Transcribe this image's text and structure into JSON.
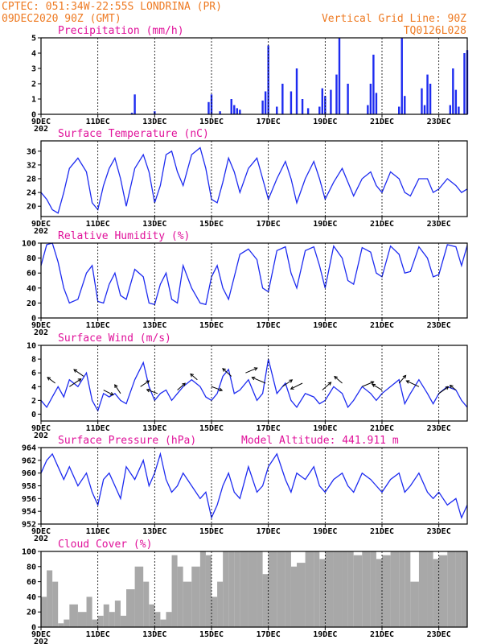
{
  "header": {
    "line1": "CPTEC:  051:34W-22:55S  LONDRINA (PR)",
    "line2": "09DEC2020 90Z (GMT)",
    "grid_note": "Vertical Grid Line: 90Z",
    "code": "TQ0126L028"
  },
  "x_axis": {
    "ticks": [
      "9DEC",
      "11DEC",
      "13DEC",
      "15DEC",
      "17DEC",
      "19DEC",
      "21DEC",
      "23DEC"
    ],
    "tick_days": [
      9,
      11,
      13,
      15,
      17,
      19,
      21,
      23
    ],
    "start_day": 9,
    "end_day": 24,
    "clipped_year_label": "202"
  },
  "colors": {
    "series": "#1d2bf0",
    "cloud": "#a8a8a8",
    "header": "#ee7a22",
    "title": "#e0119a"
  },
  "chart_data": [
    {
      "type": "bar",
      "title": "Precipitation (mm/h)",
      "ylim": [
        0,
        5
      ],
      "yticks": [
        0,
        1,
        2,
        3,
        4,
        5
      ],
      "x": [
        12.2,
        12.3,
        13.0,
        14.9,
        15.0,
        15.3,
        15.7,
        15.8,
        15.9,
        16.0,
        16.8,
        16.9,
        17.0,
        17.3,
        17.5,
        17.8,
        18.0,
        18.2,
        18.4,
        18.8,
        18.9,
        19.0,
        19.2,
        19.4,
        19.5,
        19.8,
        20.5,
        20.6,
        20.7,
        20.8,
        21.6,
        21.7,
        21.8,
        22.4,
        22.5,
        22.6,
        22.7,
        23.4,
        23.5,
        23.6,
        23.7,
        23.9,
        24.0
      ],
      "values": [
        0.1,
        1.3,
        0.2,
        0.8,
        1.3,
        0.2,
        1.0,
        0.6,
        0.4,
        0.3,
        0.9,
        1.5,
        4.5,
        0.5,
        2.0,
        1.5,
        3.0,
        1.0,
        0.4,
        0.5,
        1.7,
        1.2,
        1.6,
        2.6,
        5.0,
        2.0,
        0.6,
        2.0,
        3.9,
        1.4,
        0.5,
        5.0,
        1.2,
        1.7,
        0.6,
        2.6,
        2.0,
        0.6,
        3.0,
        1.6,
        0.5,
        4.0,
        4.2
      ]
    },
    {
      "type": "line",
      "title": "Surface Temperature (nC)",
      "ylim": [
        17,
        39
      ],
      "yticks": [
        20,
        24,
        28,
        32,
        36
      ],
      "x": [
        9.0,
        9.2,
        9.4,
        9.6,
        9.8,
        10.0,
        10.3,
        10.6,
        10.8,
        11.0,
        11.2,
        11.4,
        11.6,
        11.8,
        12.0,
        12.3,
        12.6,
        12.8,
        13.0,
        13.2,
        13.4,
        13.6,
        13.8,
        14.0,
        14.3,
        14.6,
        14.8,
        15.0,
        15.2,
        15.4,
        15.6,
        15.8,
        16.0,
        16.3,
        16.6,
        16.8,
        17.0,
        17.3,
        17.6,
        17.8,
        18.0,
        18.3,
        18.6,
        18.8,
        19.0,
        19.3,
        19.6,
        19.8,
        20.0,
        20.3,
        20.6,
        20.8,
        21.0,
        21.3,
        21.6,
        21.8,
        22.0,
        22.3,
        22.6,
        22.8,
        23.0,
        23.3,
        23.6,
        23.8,
        24.0
      ],
      "values": [
        24,
        22,
        19,
        18,
        24,
        31,
        34,
        30,
        21,
        19,
        26,
        31,
        34,
        28,
        20,
        31,
        35,
        30,
        21,
        26,
        35,
        36,
        30,
        26,
        35,
        37,
        31,
        22,
        21,
        27,
        34,
        30,
        24,
        31,
        34,
        28,
        22,
        28,
        33,
        28,
        21,
        28,
        33,
        28,
        22,
        27,
        31,
        27,
        23,
        28,
        30,
        26,
        24,
        30,
        28,
        24,
        23,
        28,
        28,
        24,
        25,
        28,
        26,
        24,
        25
      ]
    },
    {
      "type": "line",
      "title": "Relative Humidity (%)",
      "ylim": [
        0,
        100
      ],
      "yticks": [
        0,
        20,
        40,
        60,
        80,
        100
      ],
      "x": [
        9.0,
        9.2,
        9.4,
        9.6,
        9.8,
        10.0,
        10.3,
        10.6,
        10.8,
        11.0,
        11.2,
        11.4,
        11.6,
        11.8,
        12.0,
        12.3,
        12.6,
        12.8,
        13.0,
        13.2,
        13.4,
        13.6,
        13.8,
        14.0,
        14.3,
        14.6,
        14.8,
        15.0,
        15.2,
        15.4,
        15.6,
        15.8,
        16.0,
        16.3,
        16.6,
        16.8,
        17.0,
        17.3,
        17.6,
        17.8,
        18.0,
        18.3,
        18.6,
        18.8,
        19.0,
        19.3,
        19.6,
        19.8,
        20.0,
        20.3,
        20.6,
        20.8,
        21.0,
        21.3,
        21.6,
        21.8,
        22.0,
        22.3,
        22.6,
        22.8,
        23.0,
        23.3,
        23.6,
        23.8,
        24.0
      ],
      "values": [
        70,
        98,
        100,
        75,
        40,
        20,
        25,
        60,
        70,
        22,
        20,
        45,
        60,
        30,
        25,
        65,
        55,
        20,
        18,
        45,
        60,
        25,
        20,
        70,
        40,
        20,
        18,
        55,
        70,
        40,
        25,
        55,
        85,
        92,
        78,
        40,
        35,
        90,
        95,
        60,
        40,
        90,
        95,
        70,
        40,
        96,
        80,
        50,
        45,
        94,
        88,
        60,
        55,
        96,
        85,
        60,
        62,
        95,
        80,
        55,
        58,
        98,
        95,
        70,
        97
      ]
    },
    {
      "type": "line",
      "title": "Surface Wind (m/s)",
      "ylim": [
        -1,
        10
      ],
      "yticks": [
        0,
        2,
        4,
        6,
        8,
        10
      ],
      "x": [
        9.0,
        9.2,
        9.4,
        9.6,
        9.8,
        10.0,
        10.3,
        10.6,
        10.8,
        11.0,
        11.2,
        11.4,
        11.6,
        11.8,
        12.0,
        12.3,
        12.6,
        12.8,
        13.0,
        13.2,
        13.4,
        13.6,
        13.8,
        14.0,
        14.3,
        14.6,
        14.8,
        15.0,
        15.2,
        15.4,
        15.6,
        15.8,
        16.0,
        16.3,
        16.6,
        16.8,
        17.0,
        17.3,
        17.6,
        17.8,
        18.0,
        18.3,
        18.6,
        18.8,
        19.0,
        19.3,
        19.6,
        19.8,
        20.0,
        20.3,
        20.6,
        20.8,
        21.0,
        21.3,
        21.6,
        21.8,
        22.0,
        22.3,
        22.6,
        22.8,
        23.0,
        23.3,
        23.6,
        23.8,
        24.0
      ],
      "values": [
        2,
        1,
        2.5,
        4,
        2.5,
        5,
        4,
        6,
        2,
        0.5,
        3,
        2.5,
        3,
        2,
        1.5,
        5,
        7.5,
        4,
        2,
        3,
        3.5,
        2,
        3,
        4,
        5,
        4,
        2.5,
        2,
        3,
        5.5,
        6.5,
        3,
        3.5,
        5,
        2,
        3,
        8,
        3,
        4.5,
        2,
        1,
        3,
        2.5,
        1.5,
        2,
        4,
        3,
        1,
        2,
        4,
        3,
        2,
        3,
        4,
        5,
        1.5,
        3,
        5,
        3,
        1.5,
        3,
        4,
        3.5,
        2,
        1
      ]
    },
    {
      "type": "line",
      "title": "Surface Pressure (hPa)",
      "annotation": "Model Altitude: 441.911 m",
      "ylim": [
        952,
        964
      ],
      "yticks": [
        952,
        954,
        956,
        958,
        960,
        962,
        964
      ],
      "x": [
        9.0,
        9.2,
        9.4,
        9.6,
        9.8,
        10.0,
        10.3,
        10.6,
        10.8,
        11.0,
        11.2,
        11.4,
        11.6,
        11.8,
        12.0,
        12.3,
        12.6,
        12.8,
        13.0,
        13.2,
        13.4,
        13.6,
        13.8,
        14.0,
        14.3,
        14.6,
        14.8,
        15.0,
        15.2,
        15.4,
        15.6,
        15.8,
        16.0,
        16.3,
        16.6,
        16.8,
        17.0,
        17.3,
        17.6,
        17.8,
        18.0,
        18.3,
        18.6,
        18.8,
        19.0,
        19.3,
        19.6,
        19.8,
        20.0,
        20.3,
        20.6,
        20.8,
        21.0,
        21.3,
        21.6,
        21.8,
        22.0,
        22.3,
        22.6,
        22.8,
        23.0,
        23.3,
        23.6,
        23.8,
        24.0
      ],
      "values": [
        960,
        962,
        963,
        961,
        959,
        961,
        958,
        960,
        957,
        955,
        959,
        960,
        958,
        956,
        961,
        959,
        962,
        958,
        960,
        963,
        959,
        957,
        958,
        960,
        958,
        956,
        957,
        953,
        955,
        958,
        960,
        957,
        956,
        961,
        957,
        958,
        961,
        963,
        959,
        957,
        960,
        959,
        961,
        958,
        957,
        959,
        960,
        958,
        957,
        960,
        959,
        958,
        957,
        959,
        960,
        957,
        958,
        960,
        957,
        956,
        957,
        955,
        956,
        953,
        955
      ]
    },
    {
      "type": "area",
      "title": "Cloud Cover (%)",
      "ylim": [
        0,
        100
      ],
      "yticks": [
        0,
        20,
        40,
        60,
        80,
        100
      ],
      "x": [
        9.0,
        9.2,
        9.4,
        9.6,
        9.8,
        10.0,
        10.3,
        10.6,
        10.8,
        11.0,
        11.2,
        11.4,
        11.6,
        11.8,
        12.0,
        12.3,
        12.6,
        12.8,
        13.0,
        13.2,
        13.4,
        13.6,
        13.8,
        14.0,
        14.3,
        14.6,
        14.8,
        15.0,
        15.2,
        15.4,
        15.6,
        15.8,
        16.0,
        16.3,
        16.6,
        16.8,
        17.0,
        17.3,
        17.6,
        17.8,
        18.0,
        18.3,
        18.6,
        18.8,
        19.0,
        19.3,
        19.6,
        19.8,
        20.0,
        20.3,
        20.6,
        20.8,
        21.0,
        21.3,
        21.6,
        21.8,
        22.0,
        22.3,
        22.6,
        22.8,
        23.0,
        23.3,
        23.6,
        23.8,
        24.0
      ],
      "values": [
        40,
        75,
        60,
        5,
        10,
        30,
        20,
        40,
        10,
        15,
        30,
        20,
        35,
        15,
        50,
        80,
        60,
        30,
        20,
        10,
        20,
        95,
        80,
        60,
        80,
        100,
        95,
        40,
        60,
        100,
        100,
        100,
        100,
        100,
        100,
        70,
        100,
        100,
        100,
        80,
        85,
        100,
        100,
        90,
        100,
        100,
        100,
        100,
        95,
        100,
        100,
        90,
        95,
        100,
        100,
        100,
        60,
        100,
        100,
        90,
        95,
        100,
        100,
        100,
        100
      ]
    }
  ],
  "wind_arrows": {
    "x": [
      9.5,
      10.0,
      10.5,
      11.2,
      11.8,
      12.5,
      13.1,
      13.8,
      14.5,
      15.0,
      15.7,
      16.2,
      16.9,
      17.5,
      18.2,
      18.9,
      19.6,
      20.3,
      21.0,
      21.6,
      22.3,
      23.0,
      23.6
    ],
    "y": [
      4.5,
      4.0,
      5.5,
      3.5,
      3.0,
      4.0,
      3.0,
      3.5,
      5.0,
      4.0,
      5.5,
      6.0,
      4.5,
      4.0,
      4.5,
      3.5,
      4.5,
      4.0,
      3.5,
      4.5,
      4.0,
      3.0,
      3.5
    ],
    "u": [
      -0.8,
      1.2,
      -1.0,
      1.0,
      -0.6,
      0.9,
      -1.1,
      0.8,
      -0.7,
      1.1,
      -0.9,
      1.2,
      -1.4,
      1.0,
      -1.2,
      0.9,
      -0.8,
      1.2,
      -1.0,
      0.7,
      -1.3,
      1.0,
      -0.6
    ],
    "v": [
      0.6,
      0.8,
      0.7,
      -0.5,
      0.9,
      0.6,
      0.4,
      0.7,
      0.6,
      -0.4,
      0.8,
      0.5,
      0.6,
      0.7,
      -0.6,
      0.8,
      0.7,
      0.5,
      0.6,
      0.8,
      0.6,
      0.7,
      0.5
    ]
  }
}
